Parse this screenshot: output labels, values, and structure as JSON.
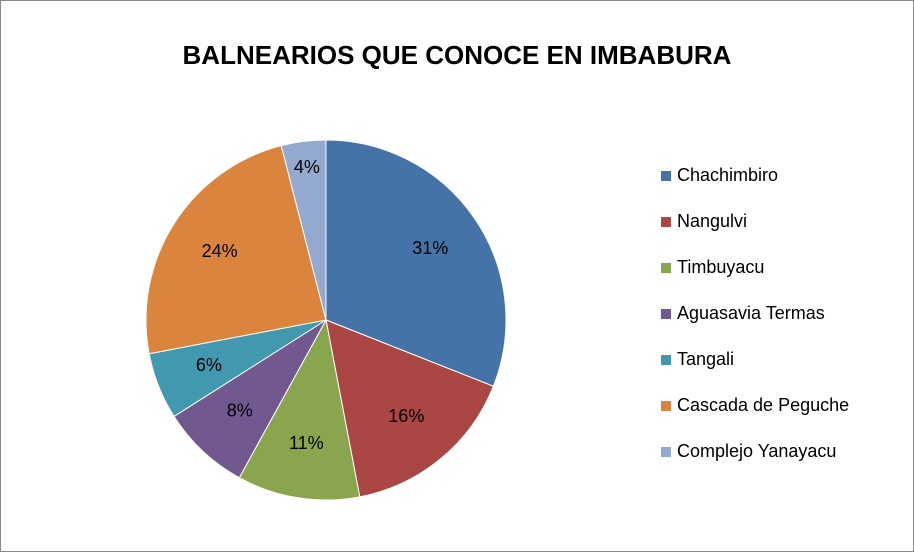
{
  "chart_data": {
    "type": "pie",
    "title": "BALNEARIOS QUE CONOCE EN IMBABURA",
    "categories": [
      "Chachimbiro",
      "Nangulvi",
      "Timbuyacu",
      "Aguasavia Termas",
      "Tangali",
      "Cascada de Peguche",
      "Complejo Yanayacu"
    ],
    "values": [
      31,
      16,
      11,
      8,
      6,
      24,
      4
    ],
    "value_labels": [
      "31%",
      "16%",
      "11%",
      "8%",
      "6%",
      "24%",
      "4%"
    ],
    "colors": [
      "#4572a7",
      "#aa4643",
      "#89a54e",
      "#71588f",
      "#4198af",
      "#db843d",
      "#93a9cf"
    ],
    "legend": "right"
  }
}
